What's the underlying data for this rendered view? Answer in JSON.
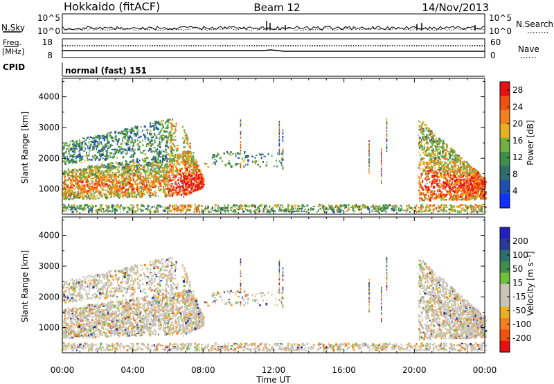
{
  "header": {
    "station": "Hokkaido (fitACF)",
    "beam": "Beam 12",
    "date": "14/Nov/2013"
  },
  "strip_panels": {
    "nsky_label": "N.Sky",
    "nsky_ticks": [
      "10^5",
      "10^0"
    ],
    "nsearch_label": "N.Search",
    "nsearch_ticks": [
      "10^5",
      "10^0"
    ],
    "freq_label_line1": "Freq.",
    "freq_label_line2": "[MHz]",
    "freq_ticks": [
      "18",
      "8"
    ],
    "nave_label": "Nave",
    "nave_ticks": [
      "60",
      "0"
    ],
    "cpid_label": "CPID",
    "cpid_text": "normal (fast) 151"
  },
  "colors": {
    "power_scale": [
      "#1030ff",
      "#2050b0",
      "#2f6e6e",
      "#3f8f4a",
      "#6fb040",
      "#e8b020",
      "#f08020",
      "#f05010",
      "#e81010"
    ],
    "velocity_scale": [
      "#e81010",
      "#f05010",
      "#f08020",
      "#e8b020",
      "#c8c4b8",
      "#c8c4b8",
      "#70c040",
      "#3f8f4a",
      "#2f6e6e",
      "#2a3a9a",
      "#2020c0"
    ],
    "velocity_bg": "#c8c4b8"
  },
  "chart_data": [
    {
      "type": "heatmap",
      "title": "",
      "xlabel": "Time UT",
      "ylabel": "Slant Range [km]",
      "x_ticks": [
        "00:00",
        "04:00",
        "08:00",
        "12:00",
        "16:00",
        "20:00",
        "00:00"
      ],
      "xlim_hours": [
        0,
        24
      ],
      "y_ticks": [
        "1000",
        "2000",
        "3000",
        "4000"
      ],
      "ylim": [
        180,
        4600
      ],
      "colorbar_label": "Power [dB]",
      "colorbar_ticks": [
        "4",
        "8",
        "12",
        "16",
        "20",
        "24",
        "28"
      ],
      "clim": [
        0,
        30
      ]
    },
    {
      "type": "heatmap",
      "title": "",
      "xlabel": "Time UT",
      "ylabel": "Slant Range [km]",
      "x_ticks": [
        "00:00",
        "04:00",
        "08:00",
        "12:00",
        "16:00",
        "20:00",
        "00:00"
      ],
      "xlim_hours": [
        0,
        24
      ],
      "y_ticks": [
        "1000",
        "2000",
        "3000",
        "4000"
      ],
      "ylim": [
        180,
        4600
      ],
      "colorbar_label": "Velocity [m s⁻¹]",
      "colorbar_ticks": [
        "200",
        "100",
        "50",
        "15",
        "-15",
        "-50",
        "-100",
        "-200"
      ]
    }
  ]
}
